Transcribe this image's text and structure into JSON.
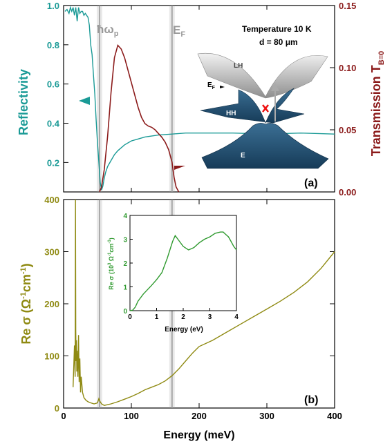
{
  "colors": {
    "reflectivity": "#1a9a96",
    "transmission": "#8b1a1a",
    "conductivity": "#8f8a12",
    "inset": "#2f9a2f",
    "band_line": "#999999",
    "dark_band": "#1f4f73"
  },
  "chart_data": [
    {
      "panel": "(a)",
      "type": "line",
      "xlim": [
        0,
        400
      ],
      "ylabel_left": "Reflectivity",
      "ylabel_right": "Transmission T",
      "ylabel_right_sub": "B=0",
      "ylim_left": [
        0.05,
        1.0
      ],
      "ylim_right": [
        0,
        0.15
      ],
      "yticks_left": [
        "0.2",
        "0.4",
        "0.6",
        "0.8",
        "1.0"
      ],
      "yticks_right": [
        "0.00",
        "0.05",
        "0.10",
        "0.15"
      ],
      "annotations": {
        "temperature": "Temperature  10 K",
        "thickness": "d = 80 μm",
        "plasma_label": "ħω",
        "plasma_sub": "p",
        "fermi_label": "E",
        "fermi_sub": "F",
        "panel_label": "(a)"
      },
      "vertical_lines": [
        53,
        160
      ],
      "series": [
        {
          "name": "Reflectivity",
          "axis": "left",
          "x": [
            2,
            5,
            8,
            10,
            12,
            14,
            16,
            18,
            20,
            22,
            24,
            26,
            28,
            30,
            32,
            34,
            36,
            38,
            40,
            42,
            44,
            46,
            48,
            50,
            52,
            54,
            56,
            58,
            60,
            62,
            65,
            70,
            75,
            80,
            90,
            100,
            110,
            120,
            140,
            160,
            180,
            200,
            220,
            250,
            300,
            350,
            400
          ],
          "y": [
            0.97,
            0.98,
            0.96,
            0.99,
            0.97,
            0.99,
            0.95,
            0.99,
            0.92,
            0.99,
            0.96,
            0.97,
            0.97,
            0.95,
            0.96,
            0.95,
            0.94,
            0.9,
            0.8,
            0.75,
            0.65,
            0.55,
            0.42,
            0.3,
            0.2,
            0.1,
            0.06,
            0.08,
            0.12,
            0.15,
            0.18,
            0.21,
            0.24,
            0.26,
            0.29,
            0.31,
            0.32,
            0.33,
            0.34,
            0.345,
            0.35,
            0.35,
            0.35,
            0.35,
            0.345,
            0.35,
            0.345
          ]
        },
        {
          "name": "Transmission",
          "axis": "right",
          "x": [
            53,
            56,
            60,
            65,
            70,
            75,
            80,
            85,
            90,
            95,
            100,
            105,
            110,
            115,
            120,
            125,
            130,
            135,
            140,
            145,
            150,
            155,
            160,
            163,
            166,
            170
          ],
          "y": [
            0.0,
            0.004,
            0.018,
            0.045,
            0.08,
            0.108,
            0.118,
            0.115,
            0.108,
            0.098,
            0.088,
            0.078,
            0.068,
            0.06,
            0.055,
            0.053,
            0.052,
            0.05,
            0.047,
            0.044,
            0.04,
            0.034,
            0.024,
            0.012,
            0.004,
            0.0
          ]
        }
      ],
      "band_labels": {
        "lh": "LH",
        "hh": "HH",
        "e": "E",
        "ef": "E",
        "ef_sub": "F"
      }
    },
    {
      "panel": "(b)",
      "type": "line",
      "xlabel": "Energy (meV)",
      "xlim": [
        0,
        400
      ],
      "xticks": [
        "0",
        "100",
        "200",
        "300",
        "400"
      ],
      "ylabel_main": "Re σ (Ω",
      "ylabel_sup1": "-1",
      "ylabel_mid": "cm",
      "ylabel_sup2": "-1",
      "ylabel_end": ")",
      "ylim": [
        0,
        400
      ],
      "yticks": [
        "0",
        "100",
        "200",
        "300",
        "400"
      ],
      "panel_label": "(b)",
      "vertical_lines": [
        53,
        160
      ],
      "series": [
        {
          "name": "Re σ",
          "x": [
            14,
            15,
            16,
            17,
            17.5,
            18,
            18.5,
            19,
            19.5,
            20,
            21,
            22,
            23,
            24,
            25,
            26,
            28,
            30,
            33,
            36,
            40,
            45,
            50,
            52,
            54,
            56,
            60,
            70,
            80,
            90,
            100,
            110,
            120,
            130,
            140,
            150,
            160,
            170,
            180,
            190,
            200,
            220,
            240,
            260,
            280,
            300,
            320,
            340,
            360,
            380,
            400
          ],
          "y": [
            40,
            80,
            120,
            60,
            400,
            150,
            90,
            130,
            70,
            110,
            60,
            140,
            50,
            95,
            30,
            60,
            30,
            20,
            15,
            12,
            10,
            8,
            10,
            18,
            12,
            8,
            5,
            8,
            12,
            17,
            22,
            28,
            35,
            40,
            45,
            52,
            62,
            75,
            90,
            105,
            118,
            130,
            145,
            160,
            175,
            190,
            205,
            222,
            242,
            268,
            300
          ]
        }
      ]
    },
    {
      "panel": "inset",
      "type": "line",
      "xlabel": "Energy (eV)",
      "ylabel": "Re σ (10",
      "ylabel_sup1": "3",
      "ylabel_mid": " Ω",
      "ylabel_sup2": "-1",
      "ylabel_mid2": "cm",
      "ylabel_sup3": "-1",
      "ylabel_end": ")",
      "xlim": [
        0,
        4
      ],
      "ylim": [
        0,
        4
      ],
      "xticks": [
        "0",
        "1",
        "2",
        "3",
        "4"
      ],
      "yticks": [
        "0",
        "1",
        "2",
        "3",
        "4"
      ],
      "series": [
        {
          "name": "Re σ (eV)",
          "x": [
            0,
            0.1,
            0.2,
            0.3,
            0.5,
            0.8,
            1.0,
            1.2,
            1.4,
            1.6,
            1.7,
            1.8,
            2.0,
            2.2,
            2.4,
            2.6,
            2.8,
            3.0,
            3.2,
            3.4,
            3.5,
            3.6,
            3.7,
            3.8,
            3.9,
            4.0
          ],
          "y": [
            0,
            0.02,
            0.15,
            0.4,
            0.7,
            1.05,
            1.3,
            1.6,
            2.2,
            2.9,
            3.15,
            3.0,
            2.7,
            2.55,
            2.65,
            2.85,
            3.0,
            3.1,
            3.25,
            3.3,
            3.3,
            3.2,
            3.1,
            2.9,
            2.7,
            2.55
          ]
        }
      ]
    }
  ]
}
